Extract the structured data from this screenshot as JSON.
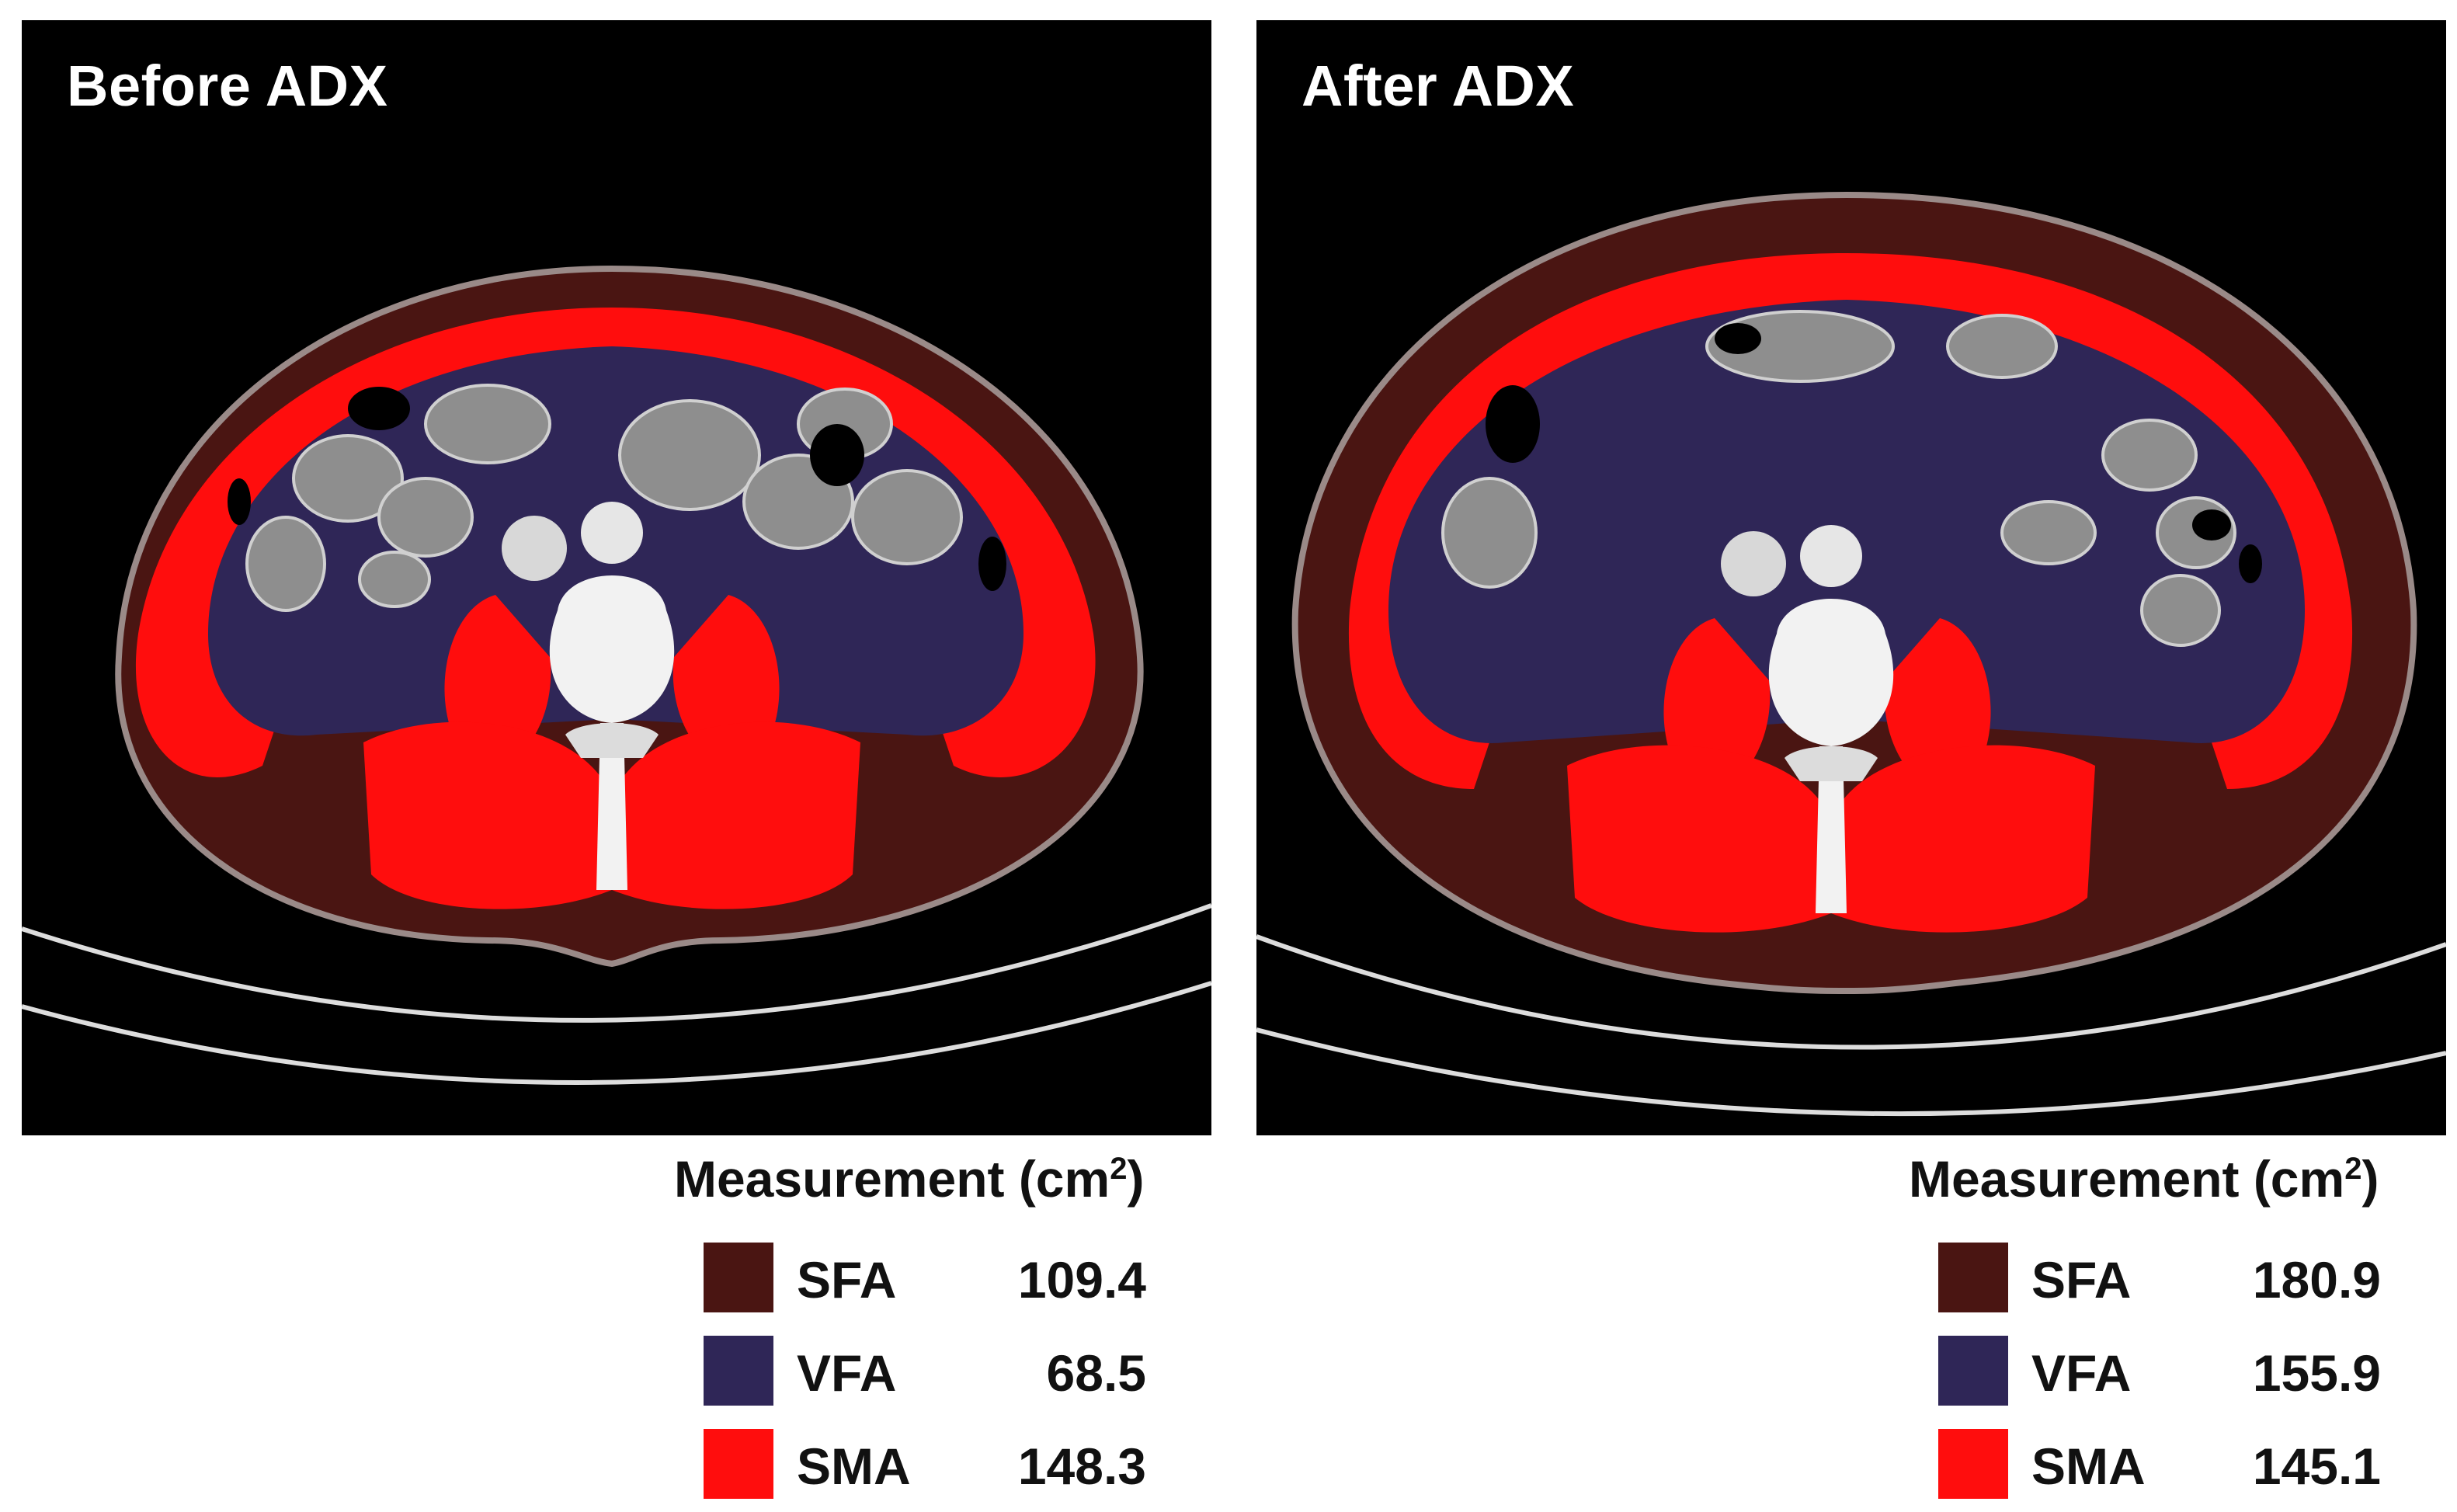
{
  "panels": [
    {
      "title": "Before ADX",
      "legend": {
        "title": "Measurement (cm",
        "superscript": "2",
        "title_end": ")",
        "rows": [
          {
            "abbr": "SFA",
            "value": "109.4",
            "color": "#4a1512"
          },
          {
            "abbr": "VFA",
            "value": "68.5",
            "color": "#2f2657"
          },
          {
            "abbr": "SMA",
            "value": "148.3",
            "color": "#ff0d0d"
          }
        ]
      }
    },
    {
      "title": "After ADX",
      "legend": {
        "title": "Measurement (cm",
        "superscript": "2",
        "title_end": ")",
        "rows": [
          {
            "abbr": "SFA",
            "value": "180.9",
            "color": "#4a1512"
          },
          {
            "abbr": "VFA",
            "value": "155.9",
            "color": "#2f2657"
          },
          {
            "abbr": "SMA",
            "value": "145.1",
            "color": "#ff0d0d"
          }
        ]
      }
    }
  ],
  "colors": {
    "sfa": "#4a1512",
    "vfa": "#2f2657",
    "sma": "#ff0d0d",
    "background": "#000000"
  }
}
